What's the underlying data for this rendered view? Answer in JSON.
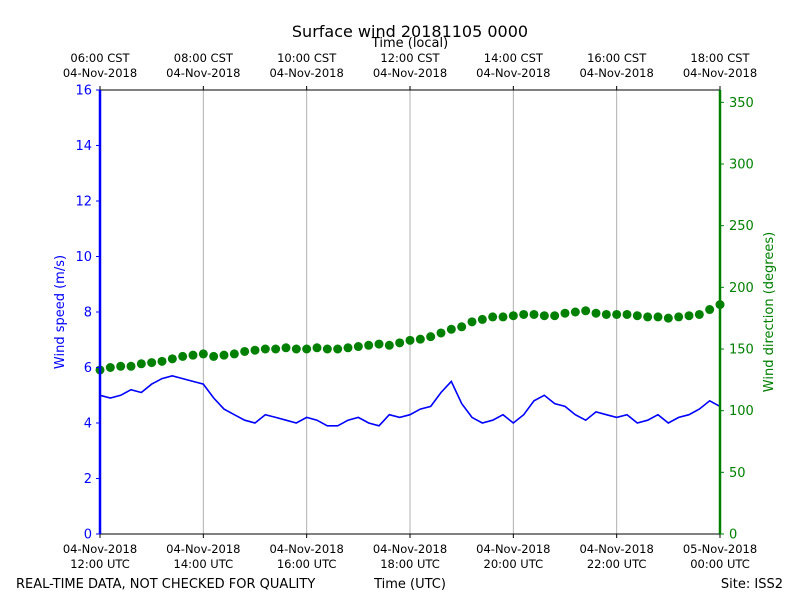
{
  "chart_data": {
    "type": "line+scatter",
    "title": "Surface wind 20181105 0000",
    "top_axis_label": "Time (local)",
    "xlabel": "Time (UTC)",
    "ylabel_left": "Wind speed (m/s)",
    "ylabel_right": "Wind direction (degrees)",
    "footer_left": "REAL-TIME DATA, NOT CHECKED FOR QUALITY",
    "footer_right": "Site: ISS2",
    "x_range_hours_utc": [
      12,
      24
    ],
    "ylim_left": [
      0,
      16
    ],
    "ylim_right": [
      0,
      360
    ],
    "grid": "vertical",
    "colors": {
      "speed": "#0000ff",
      "direction": "#008000",
      "grid": "#b0b0b0"
    },
    "x_ticks_bottom": [
      {
        "hour": 12,
        "line1": "04-Nov-2018",
        "line2": "12:00 UTC"
      },
      {
        "hour": 14,
        "line1": "04-Nov-2018",
        "line2": "14:00 UTC"
      },
      {
        "hour": 16,
        "line1": "04-Nov-2018",
        "line2": "16:00 UTC"
      },
      {
        "hour": 18,
        "line1": "04-Nov-2018",
        "line2": "18:00 UTC"
      },
      {
        "hour": 20,
        "line1": "04-Nov-2018",
        "line2": "20:00 UTC"
      },
      {
        "hour": 22,
        "line1": "04-Nov-2018",
        "line2": "22:00 UTC"
      },
      {
        "hour": 24,
        "line1": "05-Nov-2018",
        "line2": "00:00 UTC"
      }
    ],
    "x_ticks_top": [
      {
        "hour": 12,
        "line1": "06:00 CST",
        "line2": "04-Nov-2018"
      },
      {
        "hour": 14,
        "line1": "08:00 CST",
        "line2": "04-Nov-2018"
      },
      {
        "hour": 16,
        "line1": "10:00 CST",
        "line2": "04-Nov-2018"
      },
      {
        "hour": 18,
        "line1": "12:00 CST",
        "line2": "04-Nov-2018"
      },
      {
        "hour": 20,
        "line1": "14:00 CST",
        "line2": "04-Nov-2018"
      },
      {
        "hour": 22,
        "line1": "16:00 CST",
        "line2": "04-Nov-2018"
      },
      {
        "hour": 24,
        "line1": "18:00 CST",
        "line2": "04-Nov-2018"
      }
    ],
    "y_ticks_left": [
      0,
      2,
      4,
      6,
      8,
      10,
      12,
      14,
      16
    ],
    "y_ticks_right": [
      0,
      50,
      100,
      150,
      200,
      250,
      300,
      350
    ],
    "series": [
      {
        "name": "Wind speed",
        "axis": "left",
        "style": "line",
        "x_hours": [
          12.0,
          12.2,
          12.4,
          12.6,
          12.8,
          13.0,
          13.2,
          13.4,
          13.6,
          13.8,
          14.0,
          14.2,
          14.4,
          14.6,
          14.8,
          15.0,
          15.2,
          15.4,
          15.6,
          15.8,
          16.0,
          16.2,
          16.4,
          16.6,
          16.8,
          17.0,
          17.2,
          17.4,
          17.6,
          17.8,
          18.0,
          18.2,
          18.4,
          18.6,
          18.8,
          19.0,
          19.2,
          19.4,
          19.6,
          19.8,
          20.0,
          20.2,
          20.4,
          20.6,
          20.8,
          21.0,
          21.2,
          21.4,
          21.6,
          21.8,
          22.0,
          22.2,
          22.4,
          22.6,
          22.8,
          23.0,
          23.2,
          23.4,
          23.6,
          23.8,
          24.0
        ],
        "values": [
          5.0,
          4.9,
          5.0,
          5.2,
          5.1,
          5.4,
          5.6,
          5.7,
          5.6,
          5.5,
          5.4,
          4.9,
          4.5,
          4.3,
          4.1,
          4.0,
          4.3,
          4.2,
          4.1,
          4.0,
          4.2,
          4.1,
          3.9,
          3.9,
          4.1,
          4.2,
          4.0,
          3.9,
          4.3,
          4.2,
          4.3,
          4.5,
          4.6,
          5.1,
          5.5,
          4.7,
          4.2,
          4.0,
          4.1,
          4.3,
          4.0,
          4.3,
          4.8,
          5.0,
          4.7,
          4.6,
          4.3,
          4.1,
          4.4,
          4.3,
          4.2,
          4.3,
          4.0,
          4.1,
          4.3,
          4.0,
          4.2,
          4.3,
          4.5,
          4.8,
          4.6
        ]
      },
      {
        "name": "Wind direction",
        "axis": "right",
        "style": "scatter",
        "x_hours": [
          12.0,
          12.2,
          12.4,
          12.6,
          12.8,
          13.0,
          13.2,
          13.4,
          13.6,
          13.8,
          14.0,
          14.2,
          14.4,
          14.6,
          14.8,
          15.0,
          15.2,
          15.4,
          15.6,
          15.8,
          16.0,
          16.2,
          16.4,
          16.6,
          16.8,
          17.0,
          17.2,
          17.4,
          17.6,
          17.8,
          18.0,
          18.2,
          18.4,
          18.6,
          18.8,
          19.0,
          19.2,
          19.4,
          19.6,
          19.8,
          20.0,
          20.2,
          20.4,
          20.6,
          20.8,
          21.0,
          21.2,
          21.4,
          21.6,
          21.8,
          22.0,
          22.2,
          22.4,
          22.6,
          22.8,
          23.0,
          23.2,
          23.4,
          23.6,
          23.8,
          24.0
        ],
        "values": [
          133,
          135,
          136,
          136,
          138,
          139,
          140,
          142,
          144,
          145,
          146,
          144,
          145,
          146,
          148,
          149,
          150,
          150,
          151,
          150,
          150,
          151,
          150,
          150,
          151,
          152,
          153,
          154,
          153,
          155,
          157,
          158,
          160,
          163,
          166,
          168,
          172,
          174,
          176,
          176,
          177,
          178,
          178,
          177,
          177,
          179,
          180,
          181,
          179,
          178,
          178,
          178,
          177,
          176,
          176,
          175,
          176,
          177,
          178,
          182,
          186
        ]
      }
    ]
  }
}
